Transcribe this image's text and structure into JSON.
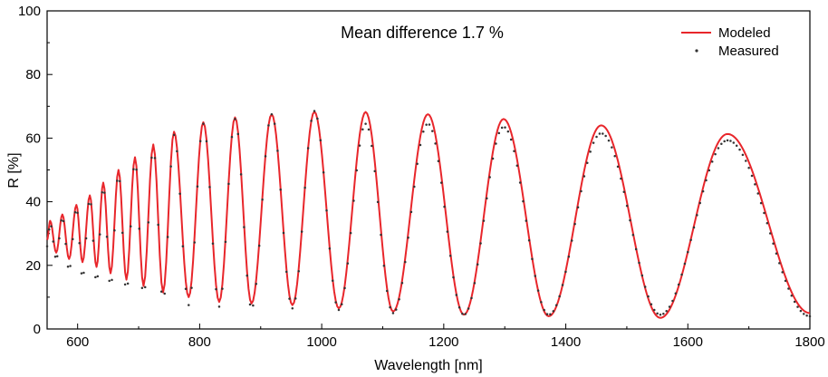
{
  "chart_data": {
    "type": "line",
    "xlabel": "Wavelength [nm]",
    "ylabel": "R [%]",
    "annotation": "Mean difference 1.7 %",
    "xlim": [
      550,
      1800
    ],
    "ylim": [
      0,
      100
    ],
    "xticks": [
      600,
      800,
      1000,
      1200,
      1400,
      1600,
      1800
    ],
    "yticks": [
      0,
      20,
      40,
      60,
      80,
      100
    ],
    "grid": false,
    "legend_position": "top-right",
    "series": [
      {
        "name": "Modeled",
        "style": "line",
        "color": "#e8262b",
        "peaks": [
          [
            555,
            34
          ],
          [
            575,
            36
          ],
          [
            598,
            39
          ],
          [
            620,
            42
          ],
          [
            642,
            46
          ],
          [
            667,
            50
          ],
          [
            694,
            54
          ],
          [
            724,
            58
          ],
          [
            758,
            62
          ],
          [
            806,
            65
          ],
          [
            858,
            66.5
          ],
          [
            918,
            67.5
          ],
          [
            988,
            68.3
          ],
          [
            1072,
            68.2
          ],
          [
            1174,
            67.5
          ],
          [
            1298,
            66
          ],
          [
            1458,
            64
          ],
          [
            1665,
            61.3
          ]
        ],
        "valleys": [
          [
            550,
            28
          ],
          [
            565,
            24
          ],
          [
            586,
            22
          ],
          [
            608,
            21
          ],
          [
            631,
            19.5
          ],
          [
            654,
            17.5
          ],
          [
            680,
            15.5
          ],
          [
            708,
            13.5
          ],
          [
            740,
            11.5
          ],
          [
            782,
            10
          ],
          [
            832,
            8.5
          ],
          [
            885,
            8
          ],
          [
            952,
            7.5
          ],
          [
            1028,
            6.5
          ],
          [
            1117,
            5.5
          ],
          [
            1233,
            4.5
          ],
          [
            1372,
            4
          ],
          [
            1555,
            3.5
          ],
          [
            1800,
            5
          ]
        ]
      },
      {
        "name": "Measured",
        "style": "dots",
        "color": "#333333",
        "peaks": [
          [
            555,
            33
          ],
          [
            575,
            35
          ],
          [
            598,
            38
          ],
          [
            620,
            41
          ],
          [
            642,
            45
          ],
          [
            667,
            49
          ],
          [
            694,
            53
          ],
          [
            724,
            57
          ],
          [
            758,
            61
          ],
          [
            806,
            64.5
          ],
          [
            858,
            66
          ],
          [
            918,
            67.5
          ],
          [
            988,
            68.5
          ],
          [
            1072,
            64.5
          ],
          [
            1174,
            64.5
          ],
          [
            1298,
            63.5
          ],
          [
            1458,
            61.5
          ],
          [
            1665,
            59.3
          ]
        ],
        "valleys": [
          [
            550,
            26
          ],
          [
            565,
            22
          ],
          [
            586,
            18.5
          ],
          [
            608,
            16
          ],
          [
            631,
            14.5
          ],
          [
            654,
            13
          ],
          [
            680,
            11.5
          ],
          [
            708,
            10
          ],
          [
            740,
            8.5
          ],
          [
            782,
            7.5
          ],
          [
            832,
            7
          ],
          [
            885,
            6.5
          ],
          [
            952,
            6.5
          ],
          [
            1028,
            6
          ],
          [
            1117,
            5
          ],
          [
            1233,
            4.5
          ],
          [
            1372,
            4.5
          ],
          [
            1555,
            4.5
          ],
          [
            1800,
            4
          ]
        ]
      }
    ]
  }
}
